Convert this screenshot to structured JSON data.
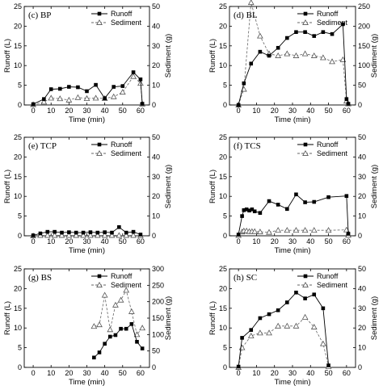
{
  "chart_data": [
    {
      "id": "bp",
      "type": "line",
      "panel_label": "(c) BP",
      "xlabel": "Time (min)",
      "ylabel": "Runoff (L)",
      "y2label": "Sediment (g)",
      "xlim": [
        -5,
        65
      ],
      "xticks": [
        0,
        10,
        20,
        30,
        40,
        50,
        60
      ],
      "ylim": [
        0,
        25
      ],
      "yticks": [
        0,
        5,
        10,
        15,
        20,
        25
      ],
      "y2lim": [
        0,
        50
      ],
      "y2ticks": [
        0,
        10,
        20,
        30,
        40,
        50
      ],
      "legend_position": "top-right",
      "series": [
        {
          "name": "Runoff",
          "axis": "left",
          "marker": "square",
          "line": "solid",
          "x": [
            0,
            6,
            10,
            15,
            20,
            25,
            30,
            35,
            40,
            45,
            50,
            56,
            60,
            61
          ],
          "y": [
            0.2,
            1.5,
            4.0,
            4.1,
            4.6,
            4.5,
            3.5,
            5.1,
            1.7,
            4.6,
            4.8,
            8.3,
            6.5,
            0.3
          ]
        },
        {
          "name": "Sediment",
          "axis": "right",
          "marker": "triangle",
          "line": "dashed",
          "x": [
            0,
            6,
            10,
            15,
            20,
            25,
            30,
            35,
            40,
            45,
            50,
            56,
            60,
            61
          ],
          "y": [
            0.2,
            1.5,
            3.5,
            3.2,
            2.5,
            3.8,
            3.3,
            3.5,
            3.3,
            4.2,
            6.5,
            14.5,
            11.0,
            0.5
          ]
        }
      ]
    },
    {
      "id": "bl",
      "type": "line",
      "panel_label": "(d) BL",
      "xlabel": "Time (min)",
      "ylabel": "Runoff (L)",
      "y2label": "Sediment (g)",
      "xlim": [
        -5,
        65
      ],
      "xticks": [
        0,
        10,
        20,
        30,
        40,
        50,
        60
      ],
      "ylim": [
        0,
        25
      ],
      "yticks": [
        0,
        5,
        10,
        15,
        20,
        25
      ],
      "y2lim": [
        0,
        250
      ],
      "y2ticks": [
        0,
        50,
        100,
        150,
        200,
        250
      ],
      "legend_position": "top-right",
      "series": [
        {
          "name": "Runoff",
          "axis": "left",
          "marker": "square",
          "line": "solid",
          "x": [
            0,
            3,
            7,
            12,
            17,
            22,
            27,
            32,
            37,
            42,
            47,
            52,
            58,
            60,
            61
          ],
          "y": [
            0,
            5.5,
            10.5,
            13.5,
            12.5,
            14.5,
            17.0,
            18.5,
            18.5,
            17.5,
            18.5,
            18.0,
            20.5,
            1.5,
            0.3
          ]
        },
        {
          "name": "Sediment",
          "axis": "right",
          "marker": "triangle",
          "line": "dashed",
          "x": [
            0,
            3,
            7,
            12,
            17,
            22,
            27,
            32,
            37,
            42,
            47,
            52,
            58,
            60,
            61
          ],
          "y": [
            0,
            40,
            260,
            175,
            130,
            125,
            130,
            125,
            130,
            125,
            120,
            110,
            115,
            10,
            3
          ]
        }
      ]
    },
    {
      "id": "tcp",
      "type": "line",
      "panel_label": "(e) TCP",
      "xlabel": "Time (min)",
      "ylabel": "Runoff (L)",
      "y2label": "Sediment (g)",
      "xlim": [
        -5,
        65
      ],
      "xticks": [
        0,
        10,
        20,
        30,
        40,
        50,
        60
      ],
      "ylim": [
        0,
        25
      ],
      "yticks": [
        0,
        5,
        10,
        15,
        20,
        25
      ],
      "y2lim": [
        0,
        50
      ],
      "y2ticks": [
        0,
        10,
        20,
        30,
        40,
        50
      ],
      "legend_position": "top-right",
      "series": [
        {
          "name": "Runoff",
          "axis": "left",
          "marker": "square",
          "line": "solid",
          "x": [
            0,
            4,
            8,
            12,
            16,
            20,
            24,
            28,
            32,
            36,
            40,
            44,
            48,
            52,
            56,
            60
          ],
          "y": [
            0.1,
            0.6,
            1.0,
            1.0,
            0.8,
            0.9,
            0.8,
            0.8,
            0.9,
            0.8,
            0.9,
            0.8,
            2.2,
            0.8,
            1.0,
            0.3
          ]
        },
        {
          "name": "Sediment",
          "axis": "right",
          "marker": "triangle",
          "line": "dashed",
          "x": [
            0,
            4,
            8,
            12,
            16,
            20,
            24,
            28,
            32,
            36,
            40,
            44,
            48,
            52,
            56,
            60
          ],
          "y": [
            0.0,
            0.2,
            0.2,
            0.2,
            0.2,
            0.2,
            0.2,
            0.2,
            0.2,
            0.2,
            0.2,
            0.2,
            0.2,
            0.2,
            0.2,
            0.1
          ]
        }
      ]
    },
    {
      "id": "tcs",
      "type": "line",
      "panel_label": "(f) TCS",
      "xlabel": "Time (min)",
      "ylabel": "Runoff (L)",
      "y2label": "Sediment (g)",
      "xlim": [
        -5,
        65
      ],
      "xticks": [
        0,
        10,
        20,
        30,
        40,
        50,
        60
      ],
      "ylim": [
        0,
        25
      ],
      "yticks": [
        0,
        5,
        10,
        15,
        20,
        25
      ],
      "y2lim": [
        0,
        50
      ],
      "y2ticks": [
        0,
        10,
        20,
        30,
        40,
        50
      ],
      "legend_position": "top-right",
      "series": [
        {
          "name": "Runoff",
          "axis": "left",
          "marker": "square",
          "line": "solid",
          "x": [
            0,
            2,
            3,
            4.5,
            6,
            7.5,
            9,
            12,
            17,
            22,
            27,
            32,
            37,
            42,
            50,
            60,
            61
          ],
          "y": [
            0.3,
            5.0,
            6.5,
            6.7,
            6.4,
            6.7,
            6.2,
            5.8,
            8.8,
            7.9,
            6.8,
            10.5,
            8.5,
            8.6,
            9.8,
            10.1,
            0.5
          ]
        },
        {
          "name": "Sediment",
          "axis": "right",
          "marker": "triangle",
          "line": "dashed",
          "x": [
            0,
            2,
            3,
            4.5,
            6,
            7.5,
            9,
            12,
            17,
            22,
            27,
            32,
            37,
            42,
            50,
            60,
            61
          ],
          "y": [
            0.2,
            2.0,
            2.5,
            2.5,
            2.2,
            2.2,
            2.2,
            2.0,
            1.8,
            2.8,
            2.8,
            2.8,
            2.8,
            2.8,
            2.8,
            3.0,
            0.3
          ]
        }
      ]
    },
    {
      "id": "bs",
      "type": "line",
      "panel_label": "(g) BS",
      "xlabel": "Time (min)",
      "ylabel": "Runoff (L)",
      "y2label": "Sediment (g)",
      "xlim": [
        -5,
        65
      ],
      "xticks": [
        0,
        10,
        20,
        30,
        40,
        50,
        60
      ],
      "ylim": [
        0,
        25
      ],
      "yticks": [
        0,
        5,
        10,
        15,
        20,
        25
      ],
      "y2lim": [
        0,
        300
      ],
      "y2ticks": [
        0,
        50,
        100,
        150,
        200,
        250,
        300
      ],
      "legend_position": "top-right",
      "series": [
        {
          "name": "Runoff",
          "axis": "left",
          "marker": "square",
          "line": "solid",
          "x": [
            34,
            37,
            40,
            43,
            46,
            49,
            52,
            55,
            58,
            61
          ],
          "y": [
            2.5,
            3.8,
            6.0,
            7.8,
            8.2,
            9.8,
            9.8,
            11.0,
            6.5,
            4.8
          ]
        },
        {
          "name": "Sediment",
          "axis": "right",
          "marker": "triangle",
          "line": "dashed",
          "x": [
            34,
            37,
            40,
            43,
            46,
            49,
            52,
            55,
            58,
            61
          ],
          "y": [
            125,
            130,
            220,
            115,
            190,
            205,
            235,
            170,
            100,
            120
          ]
        }
      ]
    },
    {
      "id": "sc",
      "type": "line",
      "panel_label": "(h) SC",
      "xlabel": "Time (min)",
      "ylabel": "Runoff (L)",
      "y2label": "Sediment (g)",
      "xlim": [
        -5,
        65
      ],
      "xticks": [
        0,
        10,
        20,
        30,
        40,
        50,
        60
      ],
      "ylim": [
        0,
        25
      ],
      "yticks": [
        0,
        5,
        10,
        15,
        20,
        25
      ],
      "y2lim": [
        0,
        50
      ],
      "y2ticks": [
        0,
        10,
        20,
        30,
        40,
        50
      ],
      "legend_position": "top-right",
      "series": [
        {
          "name": "Runoff",
          "axis": "left",
          "marker": "square",
          "line": "solid",
          "x": [
            0,
            2,
            7,
            12,
            17,
            22,
            27,
            32,
            37,
            42,
            47,
            50
          ],
          "y": [
            0.2,
            7.5,
            9.5,
            12.5,
            13.5,
            14.5,
            16.5,
            19.0,
            17.5,
            18.5,
            15.0,
            0.5
          ]
        },
        {
          "name": "Sediment",
          "axis": "right",
          "marker": "triangle",
          "line": "dashed",
          "x": [
            0,
            2,
            7,
            12,
            17,
            22,
            27,
            32,
            37,
            42,
            47,
            50
          ],
          "y": [
            0,
            10,
            16,
            17.5,
            17.5,
            21,
            21,
            21,
            25.5,
            20.5,
            12,
            0.5
          ]
        }
      ]
    }
  ]
}
